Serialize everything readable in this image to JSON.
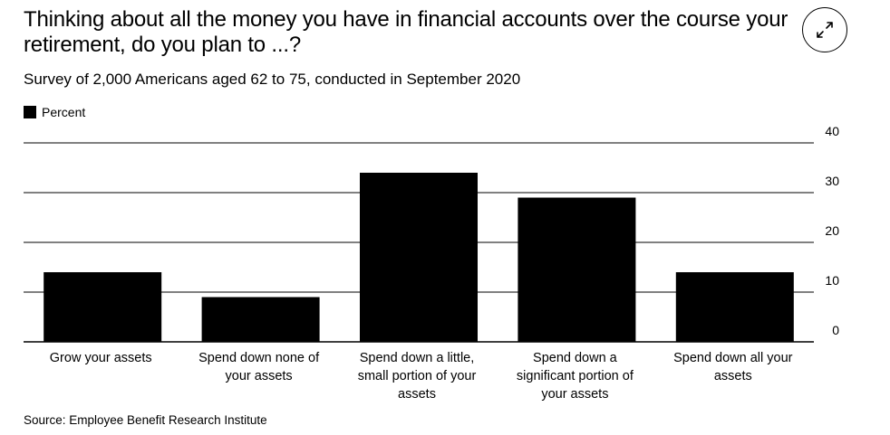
{
  "header": {
    "title": "Thinking about all the money you have in financial accounts over the course your retirement, do you plan to ...?",
    "subtitle": "Survey of 2,000 Americans aged 62 to 75, conducted in September 2020",
    "expand_icon": "expand-icon"
  },
  "legend": {
    "label": "Percent",
    "color": "#000000"
  },
  "footer": {
    "source": "Source: Employee Benefit Research Institute"
  },
  "chart_data": {
    "type": "bar",
    "title": "Thinking about all the money you have in financial accounts over the course your retirement, do you plan to ...?",
    "subtitle": "Survey of 2,000 Americans aged 62 to 75, conducted in September 2020",
    "categories": [
      [
        "Grow your assets"
      ],
      [
        "Spend down none of",
        "your assets"
      ],
      [
        "Spend down a little,",
        "small portion of your",
        "assets"
      ],
      [
        "Spend down a",
        "significant portion of",
        "your assets"
      ],
      [
        "Spend down all your",
        "assets"
      ]
    ],
    "series": [
      {
        "name": "Percent",
        "values": [
          14,
          9,
          34,
          29,
          14
        ],
        "color": "#000000"
      }
    ],
    "ylim": [
      0,
      40
    ],
    "yticks": [
      0,
      10,
      20,
      30,
      40
    ],
    "grid": true,
    "y_axis_side": "right",
    "legend_position": "top-left"
  }
}
